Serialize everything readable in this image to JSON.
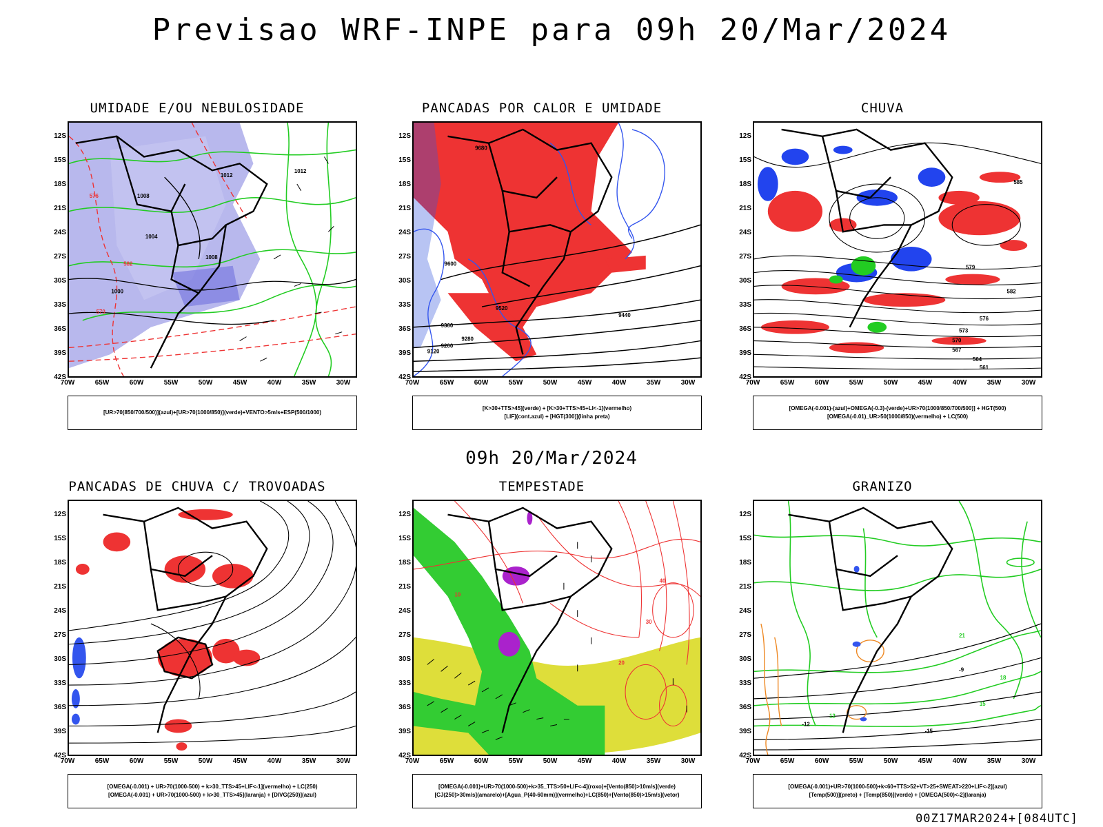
{
  "title": "Previsao WRF-INPE  para 09h 20/Mar/2024",
  "subtitle": "09h 20/Mar/2024",
  "footer": "00Z17MAR2024+[084UTC]",
  "lat_labels": [
    "12S",
    "15S",
    "18S",
    "21S",
    "24S",
    "27S",
    "30S",
    "33S",
    "36S",
    "39S",
    "42S"
  ],
  "lon_labels": [
    "70W",
    "65W",
    "60W",
    "55W",
    "50W",
    "45W",
    "40W",
    "35W",
    "30W"
  ],
  "panels": [
    {
      "title": "UMIDADE E/OU NEBULOSIDADE",
      "legend": [
        "[UR>70(850/700/500)](azul)+[UR>70(1000/850)](verde)+VENTO>5m/s+ESP(500/1000)"
      ],
      "contour_labels": [
        "1012",
        "1008",
        "1004",
        "1000",
        "1012",
        "1008",
        "576",
        "570",
        "582"
      ]
    },
    {
      "title": "PANCADAS POR CALOR E UMIDADE",
      "legend": [
        "[K>30+TTS>45](verde) + [K>30+TTS>45+LI<-1](vermelho)",
        "[LIF](cont.azul) + [HGT(300)](linha preta)"
      ],
      "contour_labels": [
        "9680",
        "9600",
        "9520",
        "9440",
        "9360",
        "9280",
        "9200",
        "9120"
      ]
    },
    {
      "title": "CHUVA",
      "legend": [
        "[OMEGA(-0.001)-(azul)+OMEGA(-0.3)-(verde)+UR>70(1000/850/700/500)] + HGT(500)",
        "[OMEGA(-0.01)_UR>50(1000/850)(vermelho) + LC(500)"
      ],
      "contour_labels": [
        "585",
        "582",
        "579",
        "576",
        "573",
        "570",
        "567",
        "564",
        "561"
      ]
    },
    {
      "title": "PANCADAS DE CHUVA C/ TROVOADAS",
      "legend": [
        "[OMEGA(-0.001) + UR>70(1000-500) + k>30_TTS>45+LIF<-1](vermelho) + LC(250)",
        "[OMEGA(-0.001) + UR>70(1000-500) + k>30_TTS>45](laranja) + [DIVG(250)](azul)"
      ],
      "contour_labels": []
    },
    {
      "title": "TEMPESTADE",
      "legend": [
        "[OMEGA(-0.001)+UR>70(1000-500)+k>35_TTS>50+LIF<-4](roxo)+[Vento(850)>10m/s](verde)",
        "[CJ(250)>30m/s](amarelo)+[Agua_P(40-60mm)](vermelho)+LC(850)+[Vento(850)>15m/s](vetor)"
      ],
      "contour_labels": [
        "40",
        "30",
        "20",
        "10"
      ]
    },
    {
      "title": "GRANIZO",
      "legend": [
        "[OMEGA(-0.001)+UR>70(1000-500)+k<60+TTS>52+VT>25+SWEAT>220+LIF<-2](azul)",
        "[Temp(500)](preto) + [Temp(850)](verde) + [OMEGA(500)<-2](laranja)"
      ],
      "contour_labels": [
        "-12",
        "-15",
        "-9",
        "12",
        "15",
        "18",
        "21"
      ]
    }
  ],
  "colors": {
    "red": "#ee3333",
    "blue": "#2244ee",
    "green": "#22cc22",
    "lavender": "#9a9ae6",
    "yellow": "#dede3a",
    "purple": "#aa22cc",
    "orange": "#ee8822"
  }
}
